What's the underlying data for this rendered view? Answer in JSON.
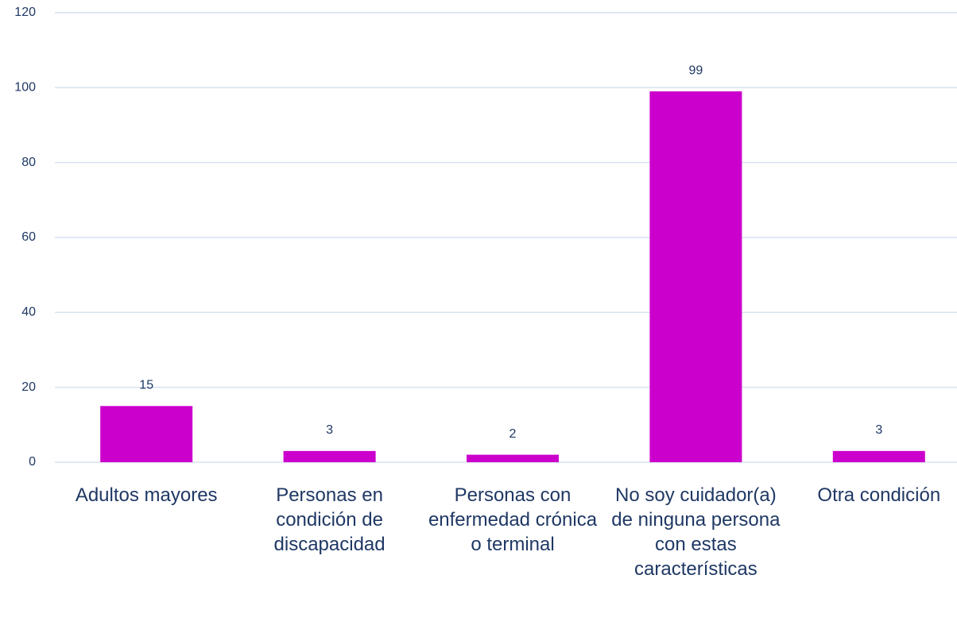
{
  "chart_data": {
    "type": "bar",
    "categories": [
      "Adultos mayores",
      "Personas en condición de discapacidad",
      "Personas con enfermedad crónica o terminal",
      "No soy cuidador(a) de ninguna persona con estas características",
      "Otra condición"
    ],
    "values": [
      15,
      3,
      2,
      99,
      3
    ],
    "color": "#cc00cc",
    "ylim": [
      0,
      120
    ],
    "yticks": [
      0,
      20,
      40,
      60,
      80,
      100,
      120
    ],
    "grid": true
  }
}
